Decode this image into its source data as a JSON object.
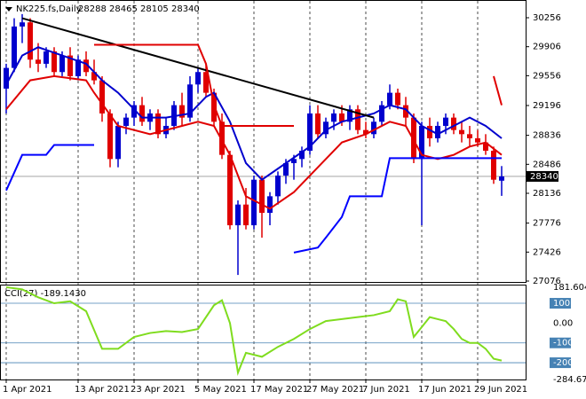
{
  "chart_data": [
    {
      "type": "candlestick",
      "title": "NK225.fs,Daily",
      "subtitle": "28288 28465 28105 28340",
      "up_color": "#0000cd",
      "down_color": "#e00000",
      "categories": [
        "1 Apr 2021",
        null,
        null,
        null,
        null,
        null,
        null,
        null,
        null,
        "13 Apr 2021",
        null,
        null,
        null,
        null,
        null,
        null,
        "23 Apr 2021",
        null,
        null,
        null,
        null,
        null,
        null,
        null,
        "5 May 2021",
        null,
        null,
        null,
        null,
        null,
        null,
        "17 May 2021",
        null,
        null,
        null,
        null,
        null,
        null,
        "27 May 2021",
        null,
        null,
        null,
        null,
        null,
        null,
        "7 Jun 2021",
        null,
        null,
        null,
        null,
        null,
        null,
        "17 Jun 2021",
        null,
        null,
        null,
        null,
        null,
        null,
        "29 Jun 2021",
        null,
        null,
        null
      ],
      "open": [
        29400,
        29650,
        30150,
        30200,
        29750,
        29700,
        29850,
        29600,
        29800,
        29550,
        29750,
        29600,
        29500,
        29100,
        28550,
        28950,
        29050,
        29200,
        29000,
        29100,
        28850,
        28950,
        29200,
        29050,
        29450,
        29600,
        29350,
        29000,
        28600,
        27750,
        28000,
        27750,
        28300,
        27900,
        28100,
        28350,
        28500,
        28550,
        28650,
        29100,
        28850,
        29000,
        29100,
        29000,
        29150,
        28900,
        28850,
        29000,
        29200,
        29350,
        29200,
        29050,
        28550,
        28950,
        28800,
        28950,
        29050,
        28900,
        28850,
        28800,
        28750,
        28650,
        28288
      ],
      "high": [
        29700,
        30250,
        30300,
        30250,
        29950,
        29900,
        29900,
        29850,
        29900,
        29800,
        29850,
        29750,
        29550,
        29150,
        29000,
        29100,
        29250,
        29300,
        29150,
        29150,
        29050,
        29250,
        29350,
        29550,
        29650,
        29700,
        29400,
        29100,
        28650,
        28050,
        28200,
        28350,
        28350,
        28150,
        28400,
        28550,
        28600,
        28700,
        29200,
        29200,
        29050,
        29150,
        29200,
        29200,
        29200,
        29000,
        29050,
        29250,
        29450,
        29400,
        29300,
        29100,
        29000,
        29050,
        29000,
        29100,
        29100,
        29000,
        28950,
        28900,
        28850,
        28700,
        28465
      ],
      "low": [
        29100,
        29600,
        29950,
        29650,
        29600,
        29650,
        29550,
        29550,
        29500,
        29500,
        29550,
        29450,
        29000,
        28450,
        28450,
        28850,
        28950,
        28950,
        28900,
        28800,
        28800,
        28900,
        28950,
        29000,
        29350,
        29300,
        28950,
        28550,
        27700,
        27150,
        27700,
        27700,
        27600,
        27750,
        28000,
        28250,
        28300,
        28450,
        28600,
        28800,
        28800,
        28900,
        28950,
        28900,
        28850,
        28800,
        28800,
        28950,
        29150,
        29150,
        28950,
        28500,
        27750,
        28700,
        28750,
        28850,
        28850,
        28750,
        28700,
        28700,
        28600,
        28250,
        28105
      ],
      "close": [
        29650,
        30150,
        30200,
        29750,
        29700,
        29850,
        29600,
        29800,
        29550,
        29750,
        29600,
        29500,
        29100,
        28550,
        28950,
        29050,
        29200,
        29000,
        29100,
        28850,
        28950,
        29200,
        29050,
        29450,
        29600,
        29350,
        29000,
        28600,
        27750,
        28000,
        27750,
        28300,
        27900,
        28100,
        28350,
        28500,
        28550,
        28650,
        29100,
        28850,
        29000,
        29100,
        29000,
        29150,
        28900,
        28850,
        29000,
        29200,
        29350,
        29200,
        29050,
        28550,
        28950,
        28800,
        28950,
        29050,
        28900,
        28850,
        28800,
        28750,
        28650,
        28300,
        28340
      ],
      "overlays": [
        {
          "color": "#0000cd",
          "x": [
            0,
            2,
            4,
            7,
            10,
            12,
            14,
            17,
            20,
            23,
            25,
            26,
            28,
            30,
            32,
            35,
            38,
            40,
            42,
            44,
            46,
            48,
            50,
            52,
            54,
            56,
            58,
            60,
            62
          ],
          "values": [
            29450,
            29800,
            29900,
            29800,
            29700,
            29500,
            29350,
            29050,
            29050,
            29100,
            29300,
            29350,
            29000,
            28500,
            28300,
            28500,
            28700,
            28900,
            29000,
            29050,
            29100,
            29200,
            29150,
            28950,
            28850,
            28950,
            29050,
            28950,
            28800
          ]
        },
        {
          "color": "#e00000",
          "x": [
            0,
            3,
            6,
            10,
            11,
            14,
            18,
            22,
            24,
            26,
            28,
            30,
            33,
            36,
            39,
            42,
            45,
            48,
            50,
            52,
            54,
            56,
            58,
            60,
            62
          ],
          "values": [
            29150,
            29500,
            29550,
            29500,
            29350,
            28950,
            28850,
            28950,
            29000,
            28950,
            28600,
            28100,
            27950,
            28150,
            28450,
            28750,
            28850,
            29000,
            28950,
            28600,
            28550,
            28600,
            28700,
            28750,
            28600
          ]
        },
        {
          "color": "#000000",
          "x": [
            2,
            46
          ],
          "values": [
            30250,
            29050
          ]
        },
        {
          "color": "#e00000",
          "x": [
            11,
            24,
            25,
            26,
            27,
            36
          ],
          "values": [
            29930,
            29930,
            29700,
            29200,
            28950,
            28950
          ]
        },
        {
          "color": "#e00000",
          "x": [
            61,
            62
          ],
          "values": [
            29550,
            29200
          ]
        },
        {
          "color": "#0000ff",
          "x": [
            0,
            2,
            5,
            6,
            11
          ],
          "values": [
            28170,
            28600,
            28600,
            28720,
            28720
          ]
        },
        {
          "color": "#0000ff",
          "x": [
            36,
            39,
            40,
            42,
            43,
            47,
            48,
            62
          ],
          "values": [
            27420,
            27480,
            27600,
            27850,
            28100,
            28100,
            28560,
            28560
          ]
        }
      ],
      "last_price": 28340,
      "ylim": [
        27076,
        30256
      ],
      "yticks": [
        30256,
        29906,
        29556,
        29196,
        28836,
        28486,
        28136,
        27776,
        27426,
        27076
      ]
    },
    {
      "type": "line",
      "title": "CCI(27) -189.1430",
      "color": "#7fdc1e",
      "x": [
        0,
        2,
        4,
        6,
        8,
        10,
        12,
        14,
        16,
        18,
        20,
        22,
        24,
        26,
        27,
        28,
        29,
        30,
        32,
        34,
        36,
        38,
        40,
        42,
        44,
        46,
        48,
        49,
        50,
        51,
        52,
        53,
        54,
        55,
        56,
        57,
        58,
        59,
        60,
        61,
        62
      ],
      "values": [
        181,
        170,
        130,
        100,
        110,
        60,
        -130,
        -130,
        -70,
        -50,
        -40,
        -45,
        -30,
        90,
        115,
        0,
        -250,
        -150,
        -170,
        -120,
        -80,
        -30,
        10,
        20,
        30,
        40,
        60,
        120,
        110,
        -70,
        -20,
        30,
        20,
        10,
        -30,
        -80,
        -100,
        -100,
        -130,
        -180,
        -189.143
      ],
      "levels": [
        100,
        -100,
        -200
      ],
      "ylim": [
        -284.671,
        181.6041
      ],
      "yticks": [
        181.6041,
        100,
        {
          "value": 0,
          "label": "0.00"
        },
        -100,
        -200,
        -284.671
      ]
    }
  ]
}
